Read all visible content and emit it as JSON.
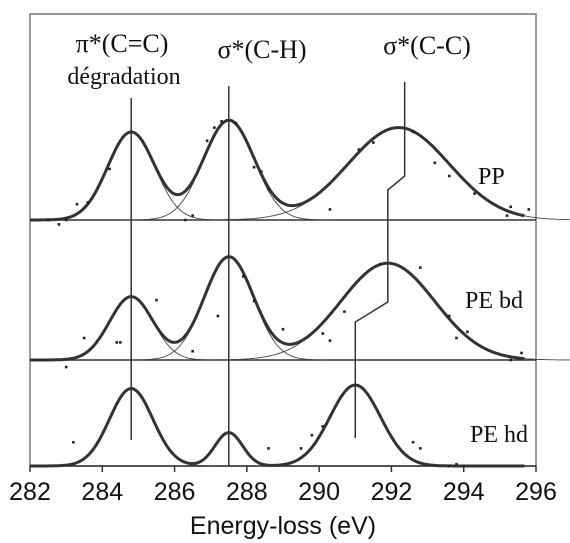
{
  "chart_data": {
    "type": "line",
    "xlabel": "Energy-loss (eV)",
    "ylabel": "",
    "xlim": [
      282,
      296
    ],
    "xticks": [
      282,
      284,
      286,
      288,
      290,
      292,
      294,
      296
    ],
    "grid": false,
    "line_color": "#333333",
    "peak_labels": [
      {
        "text": "π*(C=C)",
        "x": 284.8
      },
      {
        "text": "dégradation",
        "x": 284.8
      },
      {
        "text": "σ*(C-H)",
        "x": 287.5
      },
      {
        "text": "σ*(C-C)",
        "x": 292.4
      }
    ],
    "series": [
      {
        "name": "PP",
        "peaks": [
          {
            "center": 284.8,
            "height": 1.0,
            "width": 0.65
          },
          {
            "center": 287.5,
            "height": 1.13,
            "width": 0.7
          },
          {
            "center": 292.2,
            "height": 1.05,
            "width": 1.4
          }
        ],
        "points": [
          [
            282.5,
            0.0
          ],
          [
            282.8,
            -0.05
          ],
          [
            283.0,
            0.0
          ],
          [
            283.3,
            0.18
          ],
          [
            283.6,
            0.2
          ],
          [
            284.2,
            0.58
          ],
          [
            286.3,
            0.0
          ],
          [
            286.5,
            0.05
          ],
          [
            286.9,
            0.9
          ],
          [
            287.1,
            1.05
          ],
          [
            287.3,
            1.12
          ],
          [
            287.7,
            1.1
          ],
          [
            288.2,
            0.6
          ],
          [
            288.4,
            0.55
          ],
          [
            288.6,
            0.35
          ],
          [
            290.3,
            0.12
          ],
          [
            291.1,
            0.8
          ],
          [
            291.5,
            0.88
          ],
          [
            292.6,
            1.0
          ],
          [
            293.2,
            0.65
          ],
          [
            293.6,
            0.5
          ],
          [
            294.3,
            0.3
          ],
          [
            295.2,
            0.05
          ],
          [
            295.3,
            0.15
          ],
          [
            295.8,
            0.12
          ]
        ]
      },
      {
        "name": "PE bd",
        "peaks": [
          {
            "center": 284.8,
            "height": 0.72,
            "width": 0.6
          },
          {
            "center": 287.5,
            "height": 1.17,
            "width": 0.68
          },
          {
            "center": 291.9,
            "height": 1.1,
            "width": 1.3
          }
        ],
        "points": [
          [
            283.0,
            -0.08
          ],
          [
            283.5,
            0.25
          ],
          [
            284.4,
            0.2
          ],
          [
            284.5,
            0.2
          ],
          [
            285.5,
            0.68
          ],
          [
            286.5,
            0.1
          ],
          [
            287.2,
            0.5
          ],
          [
            287.9,
            0.95
          ],
          [
            288.2,
            0.67
          ],
          [
            289.0,
            0.35
          ],
          [
            290.1,
            0.3
          ],
          [
            290.3,
            0.22
          ],
          [
            290.7,
            0.55
          ],
          [
            291.7,
            1.09
          ],
          [
            292.8,
            1.05
          ],
          [
            293.6,
            0.5
          ],
          [
            293.8,
            0.25
          ],
          [
            294.1,
            0.32
          ],
          [
            295.3,
            0.0
          ],
          [
            295.6,
            0.08
          ]
        ]
      },
      {
        "name": "PE hd",
        "peaks": [
          {
            "center": 284.8,
            "height": 0.88,
            "width": 0.6
          },
          {
            "center": 287.5,
            "height": 0.38,
            "width": 0.38
          },
          {
            "center": 291.0,
            "height": 0.92,
            "width": 0.7
          }
        ],
        "points": [
          [
            283.2,
            0.27
          ],
          [
            288.6,
            0.2
          ],
          [
            289.5,
            0.2
          ],
          [
            289.8,
            0.35
          ],
          [
            290.1,
            0.45
          ],
          [
            292.6,
            0.27
          ],
          [
            292.8,
            0.2
          ],
          [
            293.6,
            0.0
          ],
          [
            293.8,
            0.02
          ],
          [
            294.0,
            0.0
          ]
        ]
      }
    ]
  }
}
